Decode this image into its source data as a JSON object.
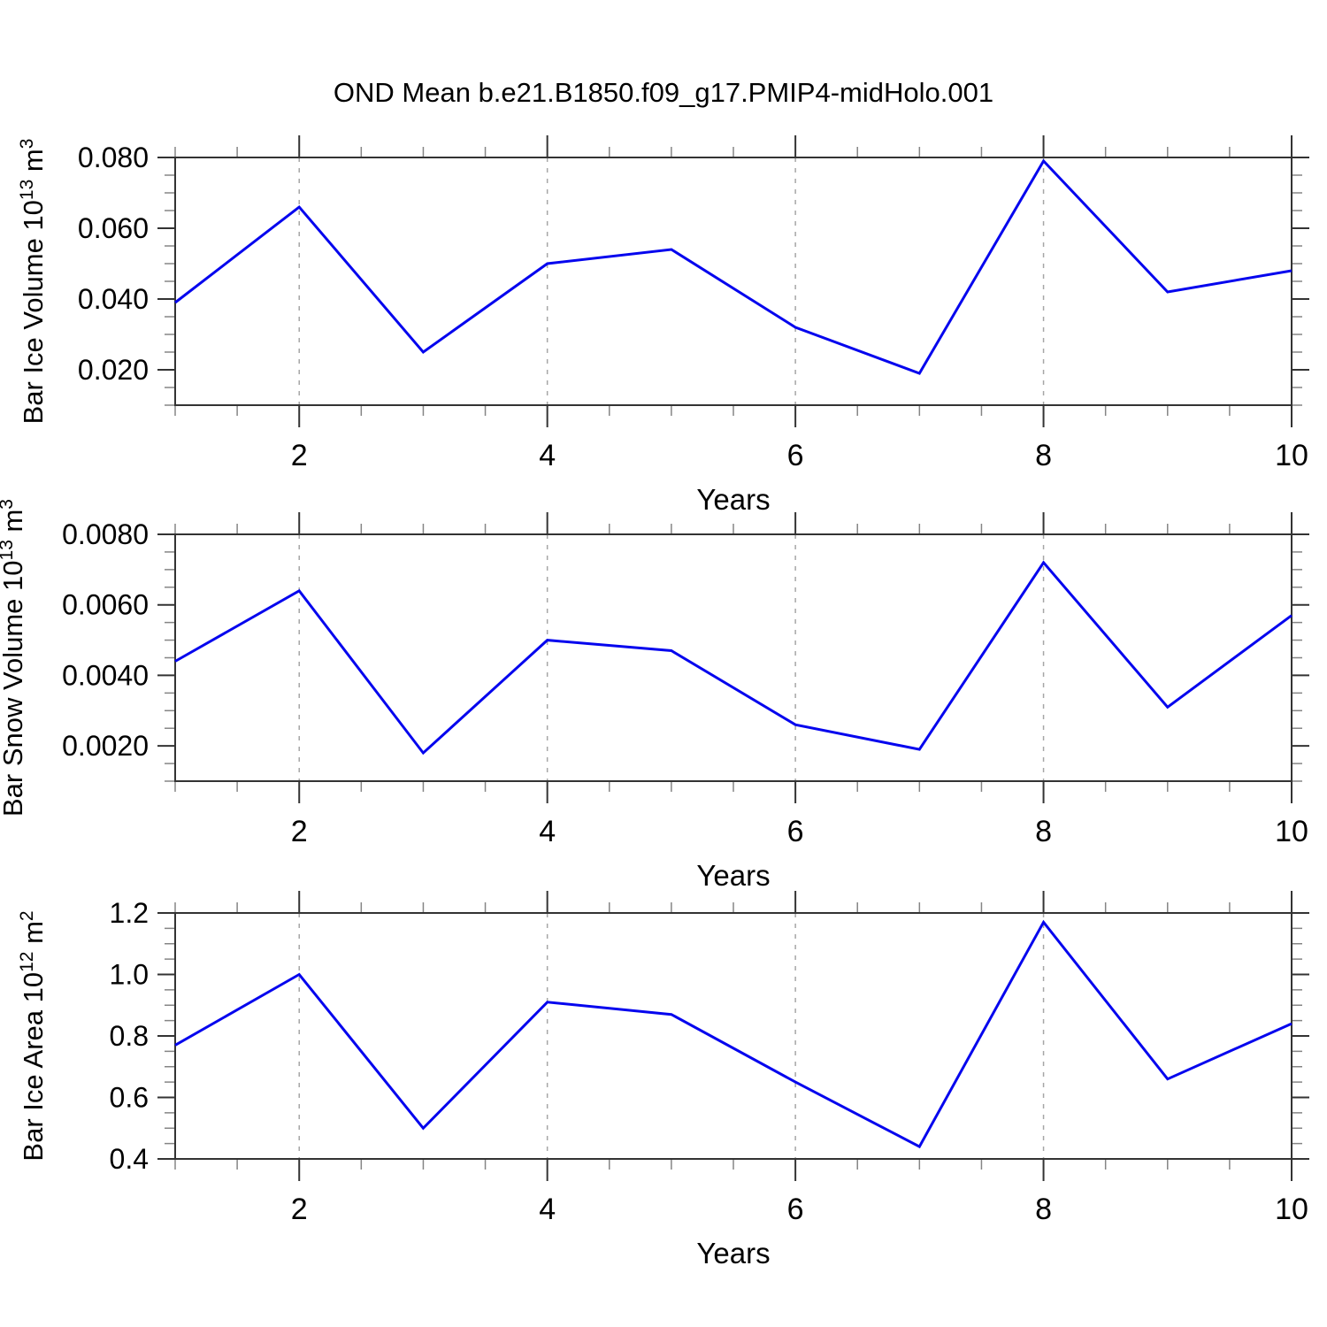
{
  "title": "OND Mean b.e21.B1850.f09_g17.PMIP4-midHolo.001",
  "colors": {
    "line": "#0505ee",
    "grid": "#a6a6a6",
    "frame": "#333333",
    "major_tick": "#333333",
    "minor_tick": "#858585",
    "text": "#000000"
  },
  "chart_data": [
    {
      "type": "line",
      "ylabel_parts": {
        "prefix": "Bar Ice Volume 10",
        "exp": "13",
        "unit": " m",
        "unit_exp": "3"
      },
      "xlabel": "Years",
      "x": [
        1,
        2,
        3,
        4,
        5,
        6,
        7,
        8,
        9,
        10
      ],
      "values": [
        0.039,
        0.066,
        0.025,
        0.05,
        0.054,
        0.032,
        0.019,
        0.079,
        0.042,
        0.048
      ],
      "ylim": [
        0.01,
        0.08
      ],
      "ytick_values": [
        0.02,
        0.04,
        0.06,
        0.08
      ],
      "ytick_labels": [
        "0.020",
        "0.040",
        "0.060",
        "0.080"
      ],
      "yminor_step": 0.005,
      "xlim": [
        1,
        10
      ],
      "xticks": [
        2,
        4,
        6,
        8,
        10
      ],
      "xtick_labels": [
        "2",
        "4",
        "6",
        "8",
        "10"
      ],
      "xminor_step": 0.5,
      "grid_x": [
        2,
        4,
        6,
        8
      ],
      "grid": "dashed-vertical"
    },
    {
      "type": "line",
      "ylabel_parts": {
        "prefix": "Bar Snow Volume 10",
        "exp": "13",
        "unit": " m",
        "unit_exp": "3"
      },
      "xlabel": "Years",
      "x": [
        1,
        2,
        3,
        4,
        5,
        6,
        7,
        8,
        9,
        10
      ],
      "values": [
        0.0044,
        0.0064,
        0.0018,
        0.005,
        0.0047,
        0.0026,
        0.0019,
        0.0072,
        0.0031,
        0.0057
      ],
      "ylim": [
        0.001,
        0.008
      ],
      "ytick_values": [
        0.002,
        0.004,
        0.006,
        0.008
      ],
      "ytick_labels": [
        "0.0020",
        "0.0040",
        "0.0060",
        "0.0080"
      ],
      "yminor_step": 0.0005,
      "xlim": [
        1,
        10
      ],
      "xticks": [
        2,
        4,
        6,
        8,
        10
      ],
      "xtick_labels": [
        "2",
        "4",
        "6",
        "8",
        "10"
      ],
      "xminor_step": 0.5,
      "grid_x": [
        2,
        4,
        6,
        8
      ],
      "grid": "dashed-vertical"
    },
    {
      "type": "line",
      "ylabel_parts": {
        "prefix": "Bar Ice Area 10",
        "exp": "12",
        "unit": " m",
        "unit_exp": "2"
      },
      "xlabel": "Years",
      "x": [
        1,
        2,
        3,
        4,
        5,
        6,
        7,
        8,
        9,
        10
      ],
      "values": [
        0.77,
        1.0,
        0.5,
        0.91,
        0.87,
        0.65,
        0.44,
        1.17,
        0.66,
        0.84
      ],
      "ylim": [
        0.4,
        1.2
      ],
      "ytick_values": [
        0.4,
        0.6,
        0.8,
        1.0,
        1.2
      ],
      "ytick_labels": [
        "0.4",
        "0.6",
        "0.8",
        "1.0",
        "1.2"
      ],
      "yminor_step": 0.05,
      "xlim": [
        1,
        10
      ],
      "xticks": [
        2,
        4,
        6,
        8,
        10
      ],
      "xtick_labels": [
        "2",
        "4",
        "6",
        "8",
        "10"
      ],
      "xminor_step": 0.5,
      "grid_x": [
        2,
        4,
        6,
        8
      ],
      "grid": "dashed-vertical"
    }
  ]
}
